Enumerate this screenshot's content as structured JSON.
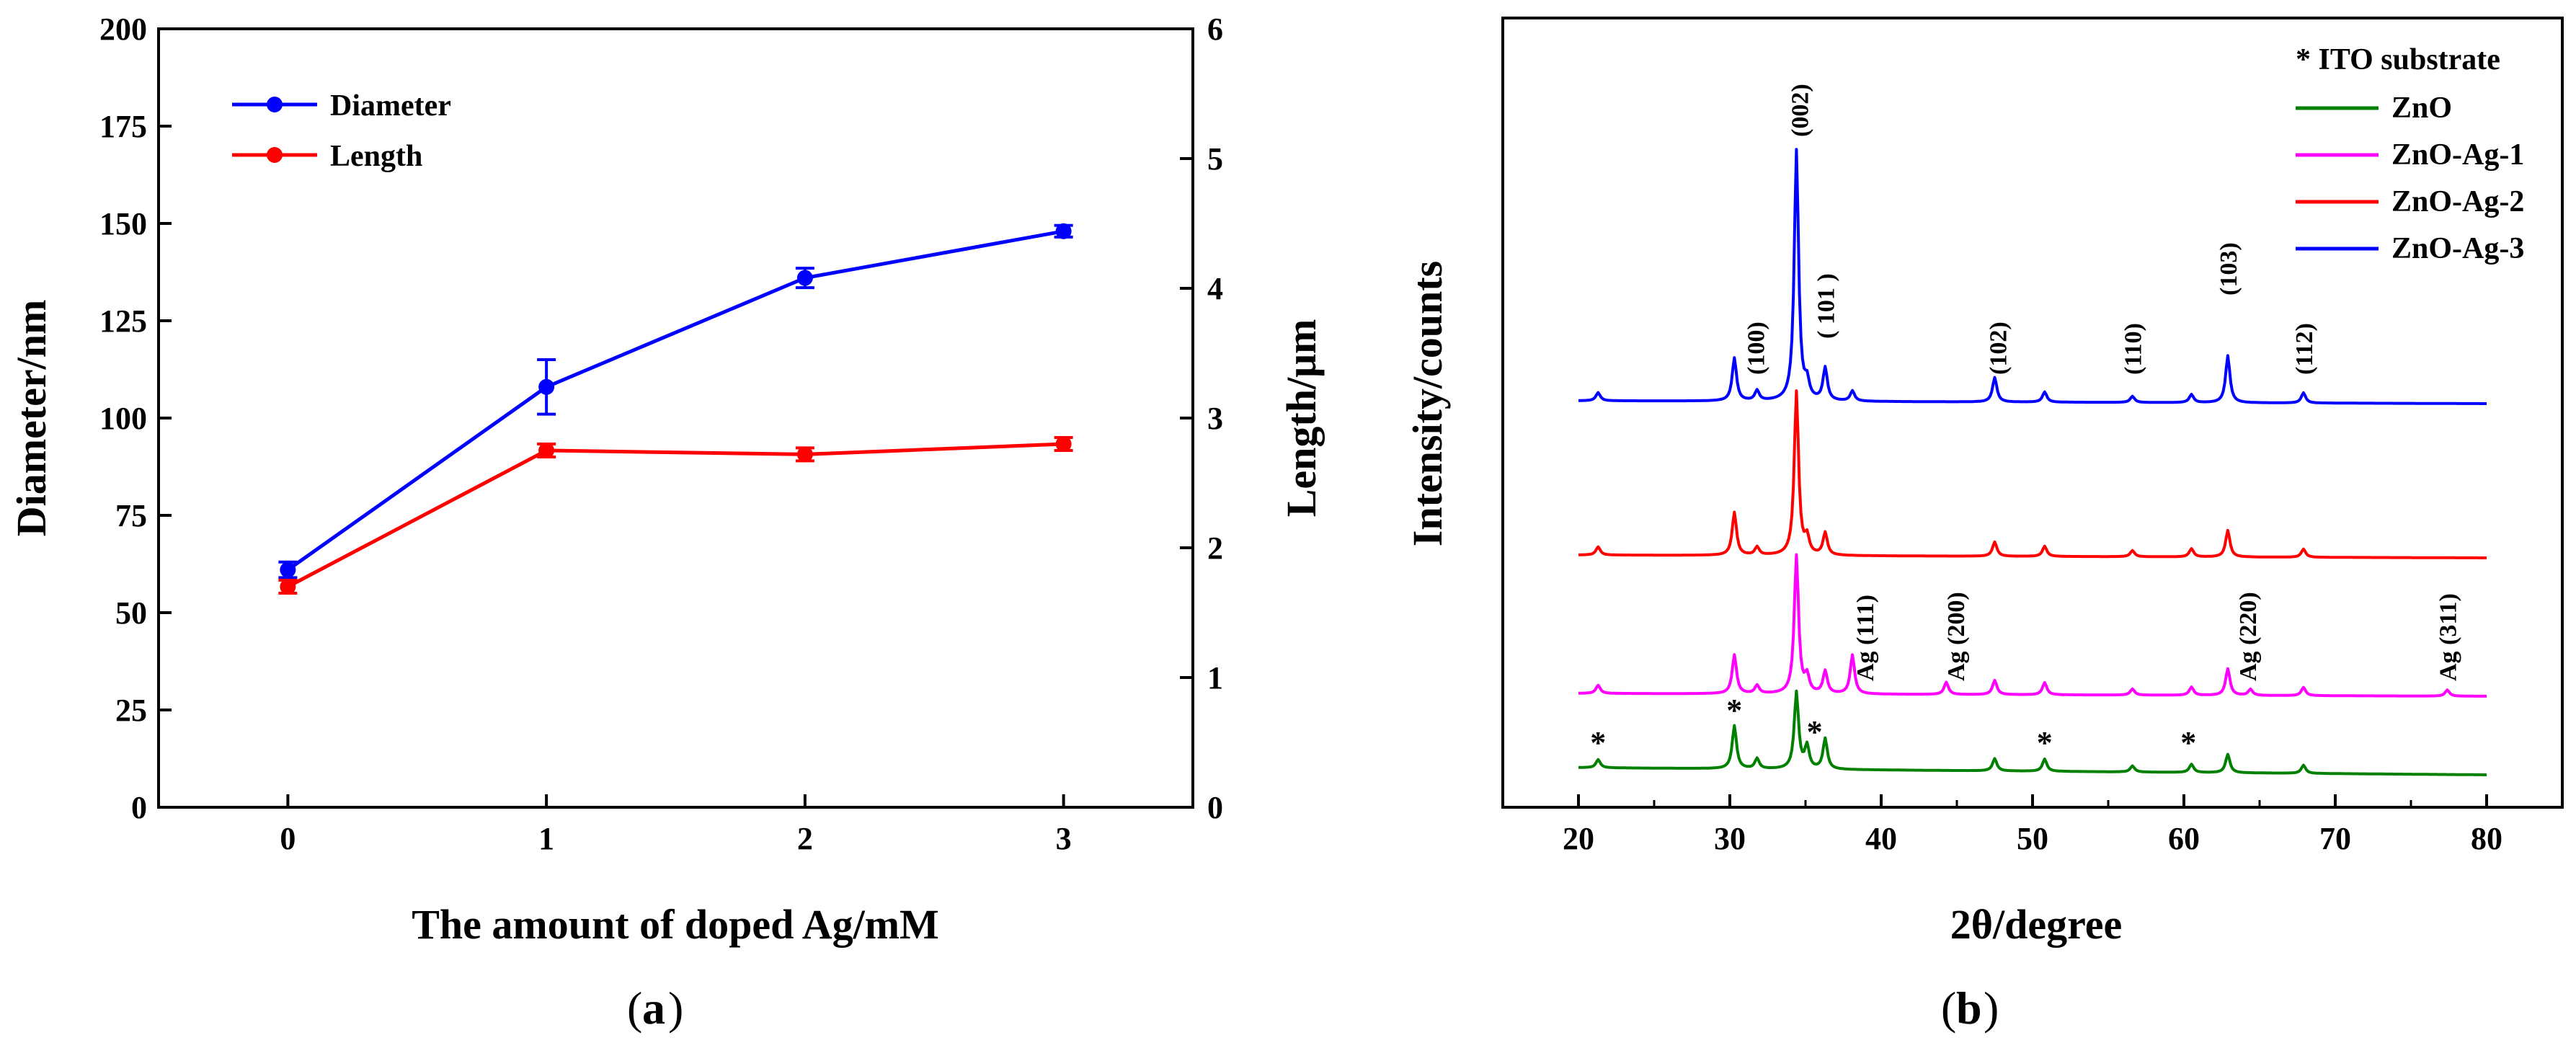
{
  "chart_data": [
    {
      "type": "line",
      "panel_label": "a",
      "xlabel": "The amount of doped Ag/mM",
      "ylabel": "Diameter/nm",
      "y2label": "Length/μm",
      "xlim": [
        -0.5,
        3.5
      ],
      "ylim": [
        0,
        200
      ],
      "y2lim": [
        0,
        6
      ],
      "xticks": [
        0,
        1,
        2,
        3
      ],
      "yticks": [
        0,
        25,
        50,
        75,
        100,
        125,
        150,
        175,
        200
      ],
      "y2ticks": [
        0,
        1,
        2,
        3,
        4,
        5,
        6
      ],
      "legend_position": "top-left",
      "series": [
        {
          "name": "Diameter",
          "color": "#0000ff",
          "axis": "left",
          "x": [
            0,
            1,
            2,
            3
          ],
          "values": [
            61,
            108,
            136,
            148
          ],
          "errors": [
            2,
            7,
            2.5,
            1.5
          ]
        },
        {
          "name": "Length",
          "color": "#ff0000",
          "axis": "right",
          "x": [
            0,
            1,
            2,
            3
          ],
          "values": [
            1.7,
            2.75,
            2.72,
            2.8
          ],
          "errors": [
            0.05,
            0.05,
            0.05,
            0.05
          ]
        }
      ]
    },
    {
      "type": "line",
      "panel_label": "b",
      "xlabel": "2θ/degree",
      "ylabel": "Intensity/counts",
      "xlim": [
        15,
        85
      ],
      "xticks": [
        20,
        30,
        40,
        50,
        60,
        70,
        80
      ],
      "legend_position": "top-right",
      "legend_title": "* ITO substrate",
      "series": [
        {
          "name": "ZnO",
          "color": "#008000",
          "x": [
            21.3,
            30.3,
            31.8,
            34.4,
            35.1,
            36.3,
            47.5,
            50.8,
            56.6,
            60.5,
            62.9,
            67.9
          ],
          "values": [
            8,
            42,
            10,
            75,
            22,
            30,
            12,
            12,
            6,
            8,
            18,
            8
          ]
        },
        {
          "name": "ZnO-Ag-1",
          "color": "#ff00ff",
          "x": [
            21.3,
            30.3,
            31.8,
            34.4,
            35.1,
            36.3,
            38.1,
            44.3,
            47.5,
            50.8,
            56.6,
            60.5,
            62.9,
            64.4,
            67.9,
            77.4
          ],
          "values": [
            8,
            38,
            8,
            135,
            16,
            22,
            38,
            12,
            14,
            12,
            6,
            8,
            26,
            6,
            8,
            6
          ]
        },
        {
          "name": "ZnO-Ag-2",
          "color": "#ff0000",
          "x": [
            21.3,
            30.3,
            31.8,
            34.4,
            35.1,
            36.3,
            47.5,
            50.8,
            56.6,
            60.5,
            62.9,
            67.9
          ],
          "values": [
            8,
            42,
            8,
            160,
            16,
            22,
            14,
            10,
            6,
            8,
            26,
            8
          ]
        },
        {
          "name": "ZnO-Ag-3",
          "color": "#0000ff",
          "x": [
            21.3,
            30.3,
            31.8,
            34.4,
            35.1,
            36.3,
            38.1,
            47.5,
            50.8,
            56.6,
            60.5,
            62.9,
            67.9
          ],
          "values": [
            8,
            42,
            10,
            245,
            16,
            32,
            10,
            24,
            10,
            6,
            8,
            46,
            10
          ]
        }
      ],
      "annotations": {
        "peaks": [
          {
            "label": "(100)",
            "x": 31.7
          },
          {
            "label": "(002)",
            "x": 34.6
          },
          {
            "label": "( 101 )",
            "x": 36.3
          },
          {
            "label": "(102)",
            "x": 47.7
          },
          {
            "label": "(110)",
            "x": 56.6
          },
          {
            "label": "(103)",
            "x": 62.9
          },
          {
            "label": "(112)",
            "x": 67.9
          }
        ],
        "ag_peaks": [
          {
            "label": "Ag (111)",
            "x": 38.9
          },
          {
            "label": "Ag (200)",
            "x": 44.9
          },
          {
            "label": "Ag (220)",
            "x": 64.2
          },
          {
            "label": "Ag (311)",
            "x": 77.4
          }
        ],
        "ito_marks": [
          {
            "label": "*",
            "x": 21.3
          },
          {
            "label": "*",
            "x": 30.3
          },
          {
            "label": "*",
            "x": 35.6
          },
          {
            "label": "*",
            "x": 50.8
          },
          {
            "label": "*",
            "x": 60.3
          }
        ]
      }
    }
  ]
}
